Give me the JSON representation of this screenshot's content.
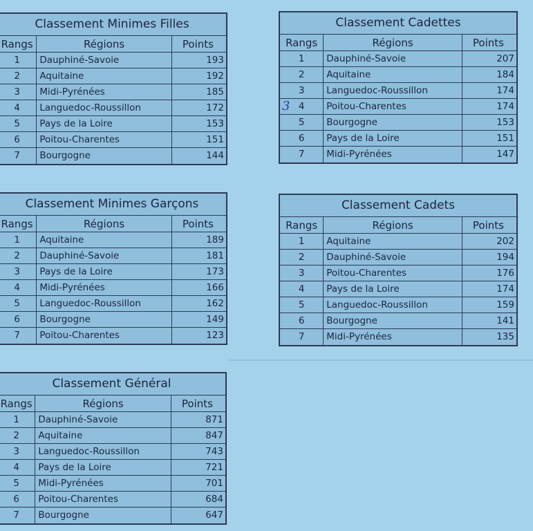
{
  "tables": [
    {
      "id": "minimes-filles",
      "title": "Classement Minimes Filles",
      "headers": [
        "Rangs",
        "Régions",
        "Points"
      ],
      "rows": [
        [
          "1",
          "Dauphiné-Savoie",
          "193"
        ],
        [
          "2",
          "Aquitaine",
          "192"
        ],
        [
          "3",
          "Midi-Pyrénées",
          "185"
        ],
        [
          "4",
          "Languedoc-Roussillon",
          "172"
        ],
        [
          "5",
          "Pays de la Loire",
          "153"
        ],
        [
          "6",
          "Poitou-Charentes",
          "151"
        ],
        [
          "7",
          "Bourgogne",
          "144"
        ]
      ]
    },
    {
      "id": "cadettes",
      "title": "Classement Cadettes",
      "headers": [
        "Rangs",
        "Régions",
        "Points"
      ],
      "rows": [
        [
          "1",
          "Dauphiné-Savoie",
          "207"
        ],
        [
          "2",
          "Aquitaine",
          "184"
        ],
        [
          "3",
          "Languedoc-Roussillon",
          "174"
        ],
        [
          "4",
          "Poitou-Charentes",
          "174"
        ],
        [
          "5",
          "Bourgogne",
          "153"
        ],
        [
          "6",
          "Pays de la Loire",
          "151"
        ],
        [
          "7",
          "Midi-Pyrénées",
          "147"
        ]
      ]
    },
    {
      "id": "minimes-garcons",
      "title": "Classement Minimes Garçons",
      "headers": [
        "Rangs",
        "Régions",
        "Points"
      ],
      "rows": [
        [
          "1",
          "Aquitaine",
          "189"
        ],
        [
          "2",
          "Dauphiné-Savoie",
          "181"
        ],
        [
          "3",
          "Pays de la Loire",
          "173"
        ],
        [
          "4",
          "Midi-Pyrénées",
          "166"
        ],
        [
          "5",
          "Languedoc-Roussillon",
          "162"
        ],
        [
          "6",
          "Bourgogne",
          "149"
        ],
        [
          "7",
          "Poitou-Charentes",
          "123"
        ]
      ]
    },
    {
      "id": "cadets",
      "title": "Classement Cadets",
      "headers": [
        "Rangs",
        "Régions",
        "Points"
      ],
      "rows": [
        [
          "1",
          "Aquitaine",
          "202"
        ],
        [
          "2",
          "Dauphiné-Savoie",
          "194"
        ],
        [
          "3",
          "Poitou-Charentes",
          "176"
        ],
        [
          "4",
          "Pays de la Loire",
          "174"
        ],
        [
          "5",
          "Languedoc-Roussillon",
          "159"
        ],
        [
          "6",
          "Bourgogne",
          "141"
        ],
        [
          "7",
          "Midi-Pyrénées",
          "135"
        ]
      ]
    },
    {
      "id": "general",
      "title": "Classement Général",
      "headers": [
        "Rangs",
        "Régions",
        "Points"
      ],
      "rows": [
        [
          "1",
          "Dauphiné-Savoie",
          "871"
        ],
        [
          "2",
          "Aquitaine",
          "847"
        ],
        [
          "3",
          "Languedoc-Roussillon",
          "743"
        ],
        [
          "4",
          "Pays de la Loire",
          "721"
        ],
        [
          "5",
          "Midi-Pyrénées",
          "701"
        ],
        [
          "6",
          "Poitou-Charentes",
          "684"
        ],
        [
          "7",
          "Bourgogne",
          "647"
        ]
      ]
    }
  ],
  "handwritten_note": "3"
}
